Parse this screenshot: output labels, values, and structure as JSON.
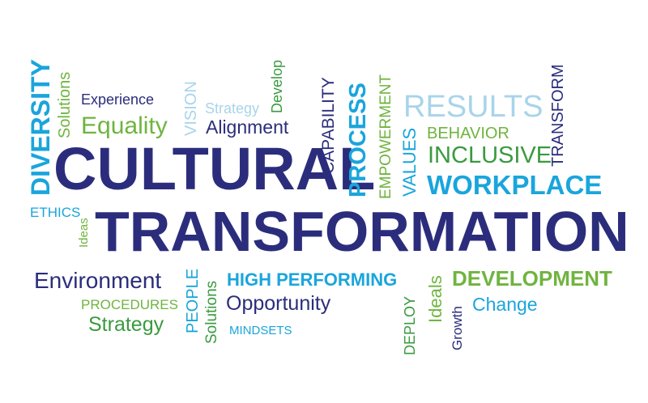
{
  "colors": {
    "navy": "#2b2d7c",
    "blue": "#1aa5dc",
    "green": "#6fb43f",
    "light_blue": "#a9d4ea",
    "dark_green": "#3a9a3f",
    "background": "#ffffff"
  },
  "words": {
    "cultural": "CULTURAL",
    "transformation": "TRANSFORMATION",
    "diversity": "DIVERSITY",
    "solutions_top": "Solutions",
    "experience": "Experience",
    "equality": "Equality",
    "vision": "VISION",
    "strategy_top": "Strategy",
    "develop": "Develop",
    "alignment": "Alignment",
    "capability": "CAPABILITY",
    "process": "PROCESS",
    "empowerment": "EMPOWERMENT",
    "values": "VALUES",
    "results": "RESULTS",
    "behavior": "BEHAVIOR",
    "inclusive": "INCLUSIVE",
    "transform": "TRANSFORM",
    "workplace": "WORKPLACE",
    "ethics": "ETHICS",
    "ideas_left": "Ideas",
    "environment": "Environment",
    "procedures": "PROCEDURES",
    "strategy_bottom": "Strategy",
    "people": "PEOPLE",
    "solutions_bottom": "Solutions",
    "high_performing": "HIGH PERFORMING",
    "opportunity": "Opportunity",
    "mindsets": "MINDSETS",
    "deploy": "DEPLOY",
    "ideals": "Ideals",
    "growth": "Growth",
    "development": "DEVELOPMENT",
    "change": "Change"
  }
}
